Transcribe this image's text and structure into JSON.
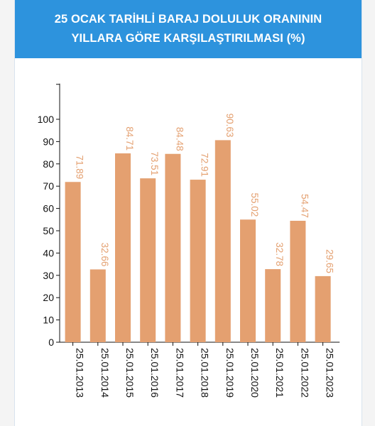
{
  "header": {
    "title_line1": "25 OCAK TARİHLİ BARAJ DOLULUK ORANININ",
    "title_line2": "YILLARA GÖRE KARŞILAŞTIRILMASI (%)"
  },
  "colors": {
    "header_bg": "#2d93dd",
    "bar": "#e4a070",
    "data_label": "#e4a070",
    "axis": "#111111"
  },
  "chart_data": {
    "type": "bar",
    "title": "25 OCAK TARİHLİ BARAJ DOLULUK ORANININ YILLARA GÖRE KARŞILAŞTIRILMASI (%)",
    "categories": [
      "25.01.2013",
      "25.01.2014",
      "25.01.2015",
      "25.01.2016",
      "25.01.2017",
      "25.01.2018",
      "25.01.2019",
      "25.01.2020",
      "25.01.2021",
      "25.01.2022",
      "25.01.2023"
    ],
    "values": [
      71.89,
      32.66,
      84.71,
      73.51,
      84.48,
      72.91,
      90.63,
      55.02,
      32.78,
      54.47,
      29.65
    ],
    "data_labels": [
      "71.89",
      "32.66",
      "84.71",
      "73.51",
      "84.48",
      "72.91",
      "90.63",
      "55.02",
      "32.78",
      "54.47",
      "29.65"
    ],
    "yticks": [
      0,
      10,
      20,
      30,
      40,
      50,
      60,
      70,
      80,
      90,
      100
    ],
    "ytick_labels": [
      "0",
      "10",
      "20",
      "30",
      "40",
      "50",
      "60",
      "70",
      "80",
      "90",
      "100"
    ],
    "ylim": [
      0,
      116
    ],
    "xlabel": "",
    "ylabel": "",
    "grid": false,
    "legend": "none"
  }
}
